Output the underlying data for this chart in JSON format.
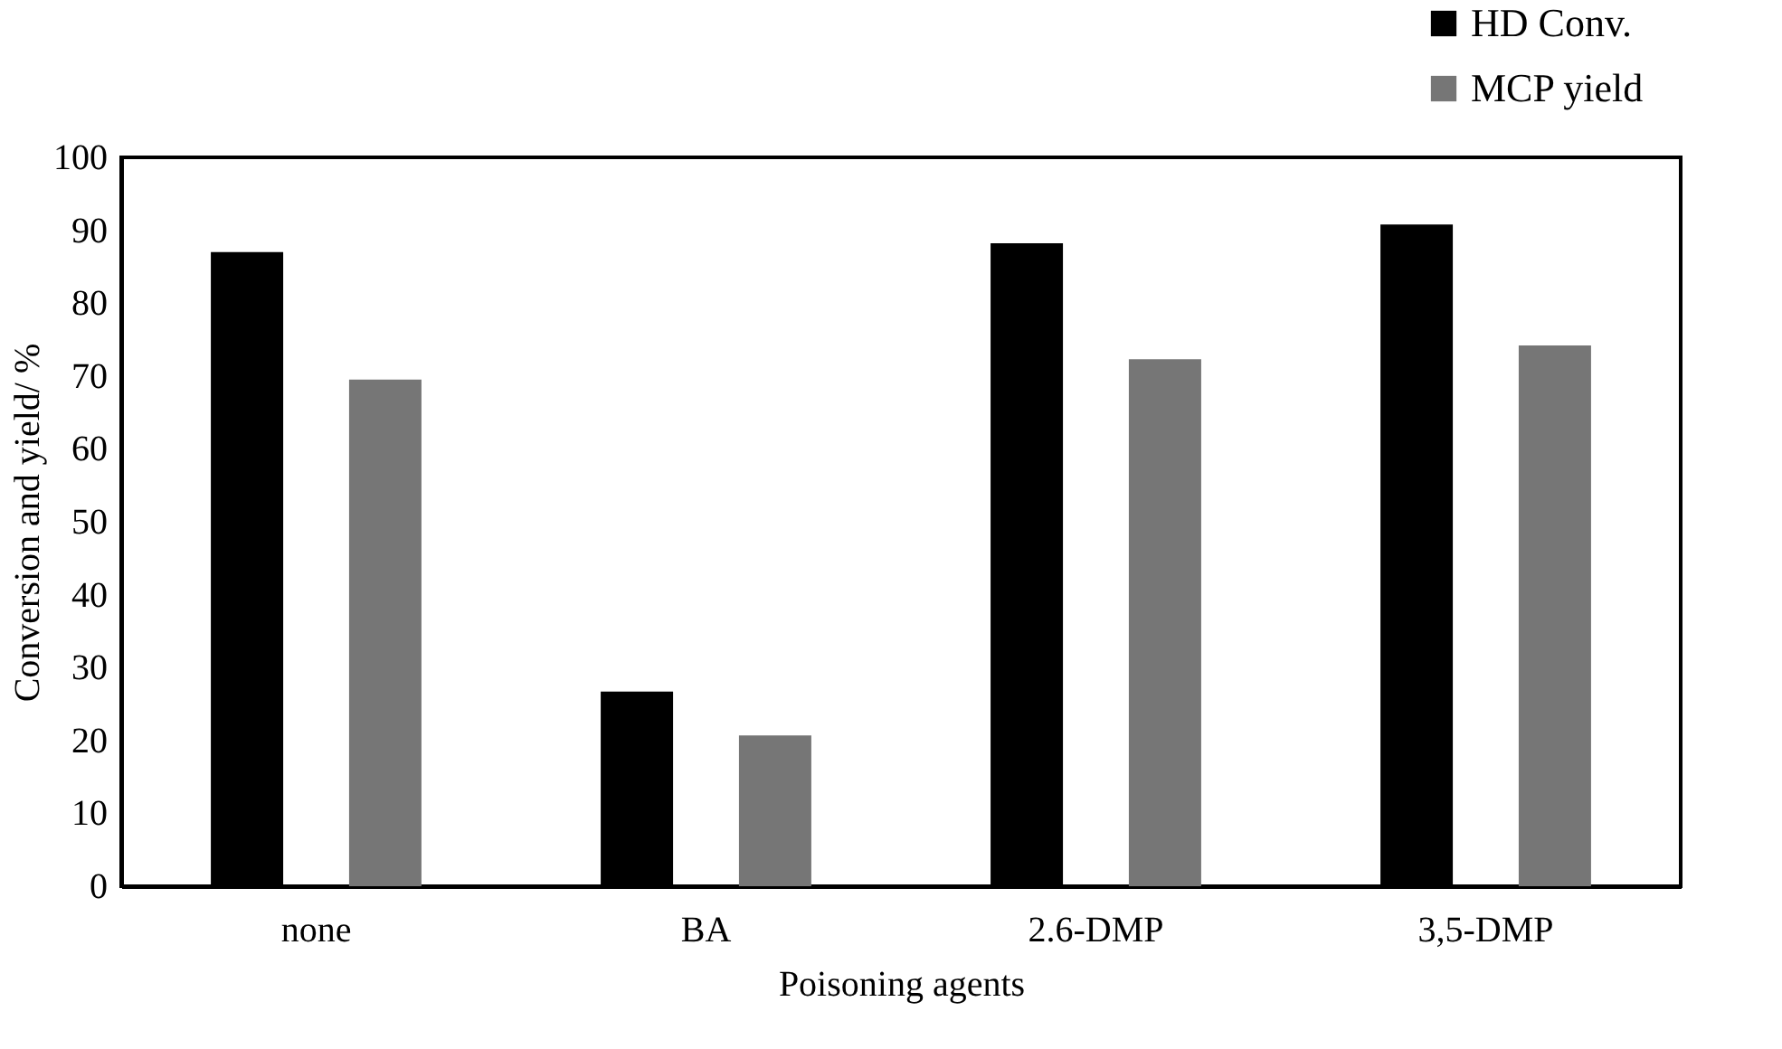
{
  "chart_data": {
    "type": "bar",
    "xlabel": "Poisoning agents",
    "ylabel": "Conversion and yield/ %",
    "categories": [
      "none",
      "BA",
      "2.6-DMP",
      "3,5-DMP"
    ],
    "series": [
      {
        "name": "HD Conv.",
        "color": "#000000",
        "values": [
          87,
          26.7,
          88.2,
          90.8
        ]
      },
      {
        "name": "MCP yield",
        "color": "#767676",
        "values": [
          69.5,
          20.7,
          72.3,
          74.2
        ]
      }
    ],
    "ylim": [
      0,
      100
    ],
    "yticks": [
      0,
      10,
      20,
      30,
      40,
      50,
      60,
      70,
      80,
      90,
      100
    ],
    "grid": false,
    "legend": "top right"
  }
}
